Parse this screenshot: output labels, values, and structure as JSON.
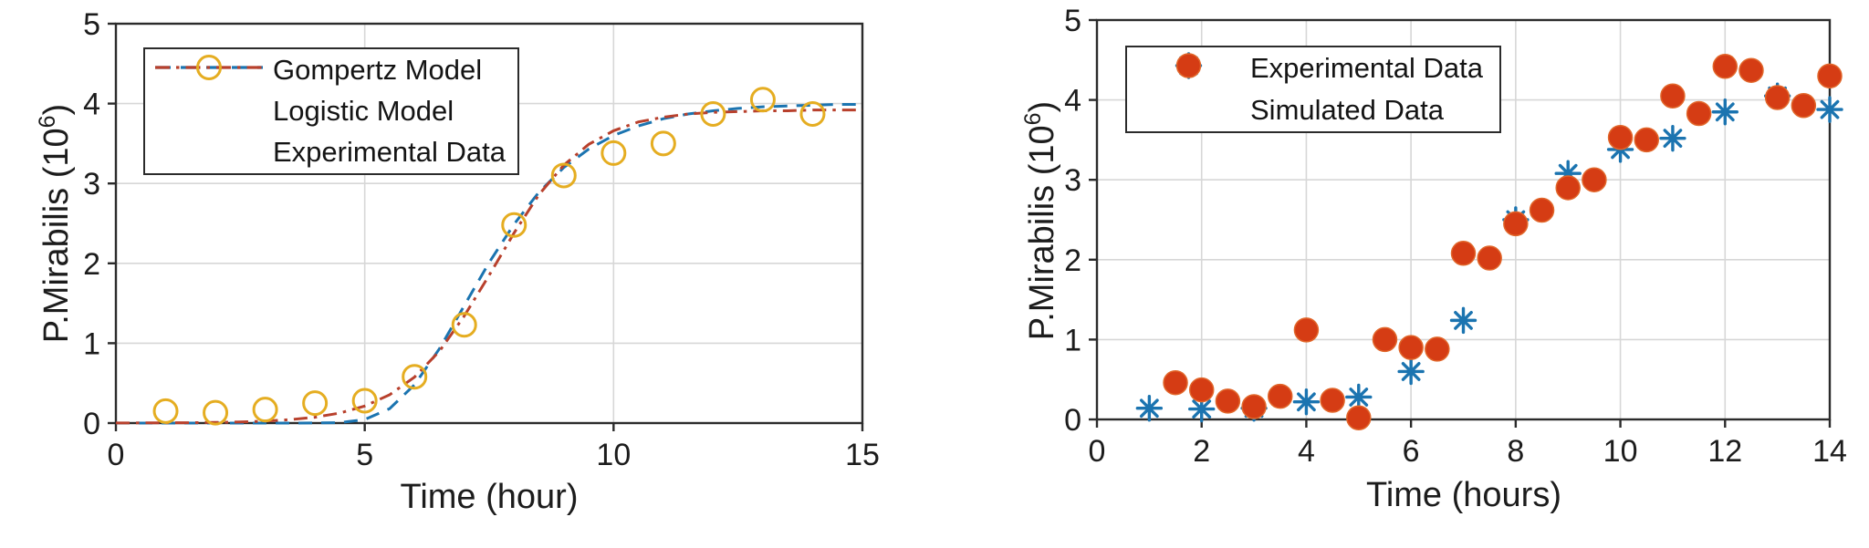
{
  "page": {
    "background": "#ffffff",
    "text_color": "#1c1c1c",
    "grid_color": "#d7d7d7",
    "box_color": "#2b2b2b"
  },
  "chart_data": [
    {
      "id": "left-chart",
      "type": "line",
      "title": "",
      "xlabel": "Time (hour)",
      "ylabel_base": "P.Mirabilis (10",
      "ylabel_sup": "6",
      "ylabel_close": ")",
      "xlim": [
        0,
        15
      ],
      "ylim": [
        0,
        5
      ],
      "xticks": [
        0,
        5,
        10,
        15
      ],
      "yticks": [
        0,
        1,
        2,
        3,
        4,
        5
      ],
      "grid_x": [
        5,
        10
      ],
      "grid_y": [
        1,
        2,
        3,
        4
      ],
      "grid": "on",
      "legend_position": "upper-left",
      "legend": [
        {
          "label": "Gompertz Model",
          "marker": "dash",
          "color": "#1b74b0"
        },
        {
          "label": "Logistic Model",
          "marker": "dashdot",
          "color": "#b8402c"
        },
        {
          "label": "Experimental Data",
          "marker": "circle-open",
          "color": "#e5ad21"
        }
      ],
      "series": [
        {
          "name": "Gompertz Model",
          "type": "line",
          "style": "dashed",
          "color": "#1b74b0",
          "x": [
            0,
            0.5,
            1,
            1.5,
            2,
            2.5,
            3,
            3.5,
            4,
            4.5,
            5,
            5.5,
            6,
            6.5,
            7,
            7.5,
            8,
            8.5,
            9,
            9.5,
            10,
            10.5,
            11,
            11.5,
            12,
            12.5,
            13,
            13.5,
            14,
            14.5,
            15
          ],
          "y": [
            0,
            0,
            0,
            0,
            0,
            0,
            0,
            0,
            0.001,
            0.006,
            0.045,
            0.18,
            0.48,
            0.93,
            1.47,
            2.01,
            2.49,
            2.89,
            3.2,
            3.43,
            3.6,
            3.72,
            3.81,
            3.87,
            3.91,
            3.94,
            3.96,
            3.97,
            3.98,
            3.99,
            3.99
          ]
        },
        {
          "name": "Logistic Model",
          "type": "line",
          "style": "dashdot",
          "color": "#b8402c",
          "x": [
            0,
            0.5,
            1,
            1.5,
            2,
            2.5,
            3,
            3.5,
            4,
            4.5,
            5,
            5.5,
            6,
            6.5,
            7,
            7.5,
            8,
            8.5,
            9,
            9.5,
            10,
            10.5,
            11,
            11.5,
            12,
            12.5,
            13,
            13.5,
            14,
            14.5,
            15
          ],
          "y": [
            0.001,
            0.002,
            0.003,
            0.005,
            0.008,
            0.014,
            0.025,
            0.043,
            0.073,
            0.126,
            0.213,
            0.354,
            0.575,
            0.9,
            1.34,
            1.85,
            2.38,
            2.86,
            3.23,
            3.49,
            3.66,
            3.77,
            3.83,
            3.87,
            3.89,
            3.9,
            3.91,
            3.91,
            3.92,
            3.92,
            3.92
          ]
        },
        {
          "name": "Experimental Data",
          "type": "scatter",
          "marker": "circle-open",
          "color": "#e5ad21",
          "x": [
            1,
            2,
            3,
            4,
            5,
            6,
            7,
            8,
            9,
            10,
            11,
            12,
            13,
            14
          ],
          "y": [
            0.15,
            0.13,
            0.17,
            0.25,
            0.28,
            0.58,
            1.23,
            2.48,
            3.1,
            3.38,
            3.5,
            3.87,
            4.05,
            3.87
          ]
        }
      ]
    },
    {
      "id": "right-chart",
      "type": "scatter",
      "title": "",
      "xlabel": "Time (hours)",
      "ylabel_base": "P.Mirabilis (10",
      "ylabel_sup": "6",
      "ylabel_close": ")",
      "xlim": [
        0,
        14
      ],
      "ylim": [
        0,
        5
      ],
      "xticks": [
        0,
        2,
        4,
        6,
        8,
        10,
        12,
        14
      ],
      "yticks": [
        0,
        1,
        2,
        3,
        4,
        5
      ],
      "grid_x": [
        2,
        4,
        6,
        8,
        10,
        12
      ],
      "grid_y": [
        1,
        2,
        3,
        4
      ],
      "grid": "on",
      "legend_position": "upper-left",
      "legend": [
        {
          "label": "Experimental Data",
          "marker": "asterisk",
          "color": "#1b74b0"
        },
        {
          "label": "Simulated Data",
          "marker": "circle-filled",
          "color": "#d53c14"
        }
      ],
      "series": [
        {
          "name": "Experimental Data",
          "type": "scatter",
          "marker": "asterisk",
          "color": "#1b74b0",
          "x": [
            1,
            2,
            3,
            4,
            5,
            6,
            7,
            8,
            9,
            10,
            11,
            12,
            13,
            14
          ],
          "y": [
            0.14,
            0.13,
            0.14,
            0.22,
            0.28,
            0.6,
            1.24,
            2.5,
            3.08,
            3.38,
            3.52,
            3.85,
            4.05,
            3.88
          ]
        },
        {
          "name": "Simulated Data",
          "type": "scatter",
          "marker": "circle-filled",
          "color": "#d53c14",
          "x": [
            1.5,
            2,
            2.5,
            3,
            3.5,
            4,
            4.5,
            5,
            5.5,
            6,
            6.5,
            7,
            7.5,
            8,
            8.5,
            9,
            9.5,
            10,
            10.5,
            11,
            11.5,
            12,
            12.5,
            13,
            13.5,
            14
          ],
          "y": [
            0.46,
            0.37,
            0.23,
            0.16,
            0.29,
            1.12,
            0.24,
            0.02,
            1.0,
            0.9,
            0.88,
            2.08,
            2.02,
            2.45,
            2.62,
            2.9,
            3.0,
            3.53,
            3.5,
            4.05,
            3.83,
            4.42,
            4.37,
            4.03,
            3.93,
            4.3
          ]
        }
      ]
    }
  ]
}
